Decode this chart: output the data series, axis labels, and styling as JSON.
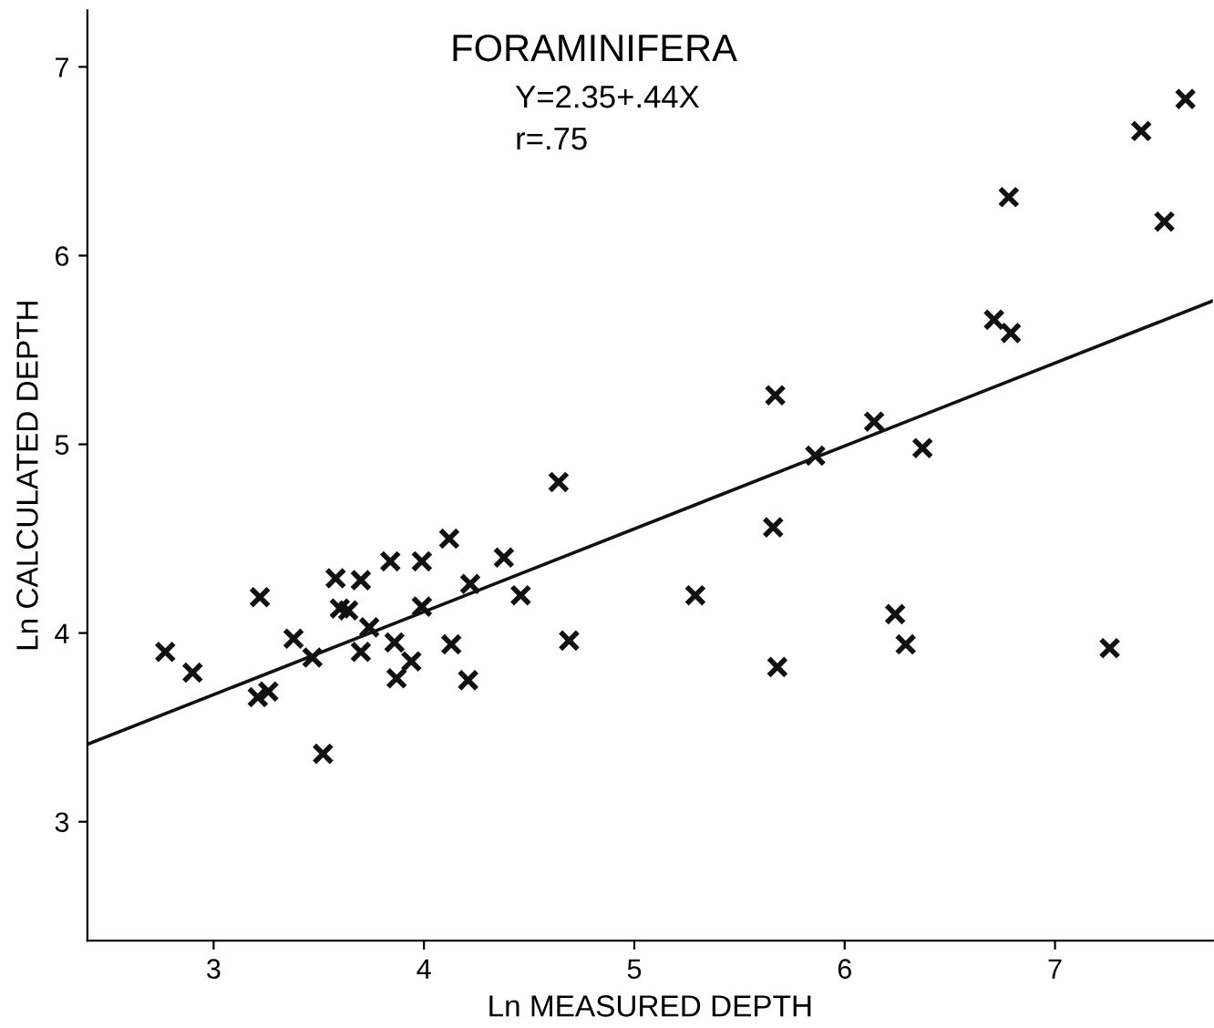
{
  "chart_data": {
    "type": "scatter",
    "title": "FORAMINIFERA",
    "xlabel": "Ln MEASURED DEPTH",
    "ylabel": "Ln CALCULATED DEPTH",
    "annotations": [
      "Y=2.35+.44X",
      "r=.75"
    ],
    "xlim": [
      2.4,
      7.75
    ],
    "ylim": [
      2.37,
      7.3
    ],
    "xticks": [
      3,
      4,
      5,
      6,
      7
    ],
    "yticks": [
      3,
      4,
      5,
      6,
      7
    ],
    "grid": false,
    "marker": "cross",
    "series": [
      {
        "color": "#111111",
        "x": [
          2.77,
          2.9,
          3.22,
          3.21,
          3.26,
          3.38,
          3.47,
          3.52,
          3.58,
          3.6,
          3.64,
          3.7,
          3.74,
          3.7,
          3.84,
          3.86,
          3.87,
          3.94,
          3.99,
          3.99,
          4.12,
          4.13,
          4.21,
          4.22,
          4.38,
          4.46,
          4.64,
          4.69,
          7.62,
          7.41,
          6.78,
          7.52,
          6.71,
          6.79,
          5.67,
          6.14,
          6.37,
          5.86,
          5.66,
          5.29,
          6.24,
          6.29,
          5.68,
          7.26
        ],
        "values": [
          3.9,
          3.79,
          4.19,
          3.66,
          3.69,
          3.97,
          3.87,
          3.36,
          4.29,
          4.13,
          4.12,
          4.28,
          4.03,
          3.9,
          4.38,
          3.95,
          3.76,
          3.85,
          4.38,
          4.14,
          4.5,
          3.94,
          3.75,
          4.26,
          4.4,
          4.2,
          4.8,
          3.96,
          6.83,
          6.66,
          6.31,
          6.18,
          5.66,
          5.59,
          5.26,
          5.12,
          4.98,
          4.94,
          4.56,
          4.2,
          4.1,
          3.94,
          3.82,
          3.92
        ]
      },
      {
        "type": "line",
        "color": "#111111",
        "marker": "none",
        "x": [
          2.4,
          7.75
        ],
        "values": [
          3.41,
          5.76
        ]
      }
    ]
  }
}
